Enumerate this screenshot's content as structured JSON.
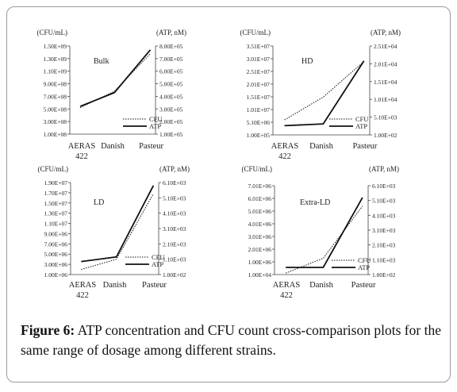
{
  "caption": {
    "label": "Figure 6:",
    "text": "ATP concentration and CFU count cross-comparison plots for the same range of dosage among different strains."
  },
  "chart_data": [
    {
      "type": "line",
      "title": "Bulk",
      "left_unit": "(CFU/mL)",
      "right_unit": "(ATP, nM)",
      "categories": [
        "AERAS 422",
        "Danish",
        "Pasteur"
      ],
      "x_tick_labels": [
        [
          "AERAS",
          "422"
        ],
        [
          "Danish"
        ],
        [
          "Pasteur"
        ]
      ],
      "y_left_ticks": [
        "1.00E+08",
        "3.00E+08",
        "5.00E+08",
        "7.00E+08",
        "9.00E+08",
        "1.10E+09",
        "1.30E+09",
        "1.50E+09"
      ],
      "y_right_ticks": [
        "1.00E+05",
        "2.00E+05",
        "3.00E+05",
        "4.00E+05",
        "5.00E+05",
        "6.00E+05",
        "7.00E+05",
        "8.00E+05"
      ],
      "ylim_left": [
        100000000,
        1500000000
      ],
      "ylim_right": [
        100000,
        800000
      ],
      "series": [
        {
          "name": "CFU",
          "axis": "left",
          "style": "dotted",
          "values": [
            520000000,
            780000000,
            1380000000
          ]
        },
        {
          "name": "ATP",
          "axis": "right",
          "style": "solid",
          "values": [
            320000,
            430000,
            770000
          ]
        }
      ],
      "legend": "bottom-right"
    },
    {
      "type": "line",
      "title": "HD",
      "left_unit": "(CFU/mL)",
      "right_unit": "(ATP, nM)",
      "categories": [
        "AERAS 422",
        "Danish",
        "Pasteur"
      ],
      "x_tick_labels": [
        [
          "AERAS",
          "422"
        ],
        [
          "Danish"
        ],
        [
          "Pasteur"
        ]
      ],
      "y_left_ticks": [
        "1.00E+05",
        "5.10E+06",
        "1.01E+07",
        "1.51E+07",
        "2.01E+07",
        "2.51E+07",
        "3.01E+07",
        "3.51E+07"
      ],
      "y_right_ticks": [
        "1.00E+02",
        "5.10E+03",
        "1.01E+04",
        "1.51E+04",
        "2.01E+04",
        "2.51E+04"
      ],
      "ylim_left": [
        100000,
        35100000
      ],
      "ylim_right": [
        100,
        25100
      ],
      "series": [
        {
          "name": "CFU",
          "axis": "left",
          "style": "dotted",
          "values": [
            6000000,
            15000000,
            29000000
          ]
        },
        {
          "name": "ATP",
          "axis": "right",
          "style": "solid",
          "values": [
            2700,
            3200,
            20900
          ]
        }
      ],
      "legend": "bottom-right"
    },
    {
      "type": "line",
      "title": "LD",
      "left_unit": "(CFU/mL)",
      "right_unit": "(ATP, nM)",
      "categories": [
        "AERAS 422",
        "Danish",
        "Pasteur"
      ],
      "x_tick_labels": [
        [
          "AERAS",
          "422"
        ],
        [
          "Danish"
        ],
        [
          "Pasteur"
        ]
      ],
      "y_left_ticks": [
        "1.00E+06",
        "3.00E+06",
        "5.00E+06",
        "7.00E+06",
        "9.00E+06",
        "1.10E+07",
        "1.30E+07",
        "1.50E+07",
        "1.70E+07",
        "1.90E+07"
      ],
      "y_right_ticks": [
        "1.00E+02",
        "1.10E+03",
        "2.10E+03",
        "3.10E+03",
        "4.10E+03",
        "5.10E+03",
        "6.10E+03"
      ],
      "ylim_left": [
        1000000,
        19000000
      ],
      "ylim_right": [
        100,
        6100
      ],
      "series": [
        {
          "name": "CFU",
          "axis": "left",
          "style": "dotted",
          "values": [
            2000000,
            4000000,
            16800000
          ]
        },
        {
          "name": "ATP",
          "axis": "right",
          "style": "solid",
          "values": [
            950,
            1250,
            5900
          ]
        }
      ],
      "legend": "bottom-right"
    },
    {
      "type": "line",
      "title": "Extra-LD",
      "left_unit": "(CFU/mL)",
      "right_unit": "(ATP, nM)",
      "categories": [
        "AERAS 422",
        "Danish",
        "Pasteur"
      ],
      "x_tick_labels": [
        [
          "AERAS",
          "422"
        ],
        [
          "Danish"
        ],
        [
          "Pasteur"
        ]
      ],
      "y_left_ticks": [
        "1.00E+04",
        "1.00E+06",
        "2.01E+06",
        "3.01E+06",
        "4.01E+06",
        "5.01E+06",
        "6.01E+06",
        "7.01E+06"
      ],
      "y_right_ticks": [
        "1.00E+02",
        "1.10E+03",
        "2.10E+03",
        "3.10E+03",
        "4.10E+03",
        "5.10E+03",
        "6.10E+03"
      ],
      "ylim_left": [
        10000,
        7010000
      ],
      "ylim_right": [
        100,
        6100
      ],
      "series": [
        {
          "name": "CFU",
          "axis": "left",
          "style": "dotted",
          "values": [
            120000,
            1300000,
            5400000
          ]
        },
        {
          "name": "ATP",
          "axis": "right",
          "style": "solid",
          "values": [
            580,
            580,
            5300
          ]
        }
      ],
      "legend": "bottom-right"
    }
  ]
}
